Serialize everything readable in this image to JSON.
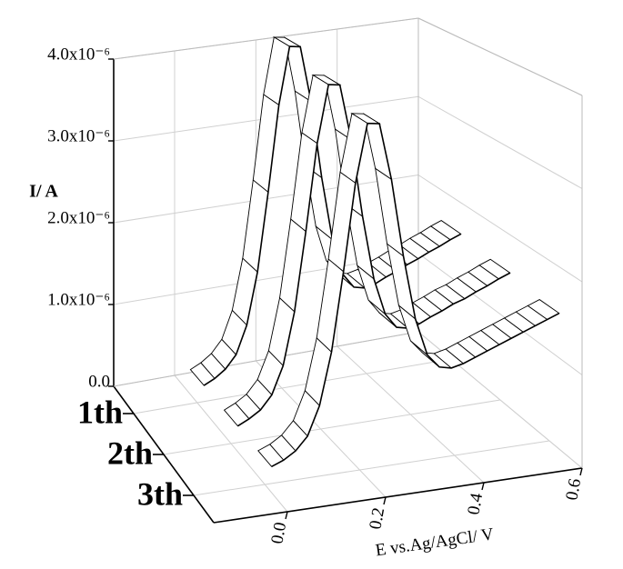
{
  "chart_data": {
    "type": "ribbon",
    "xlabel": "E vs.Ag/AgCl/ V",
    "ylabel": "I/ A",
    "x": [
      0,
      0.025,
      0.05,
      0.075,
      0.1,
      0.125,
      0.15,
      0.175,
      0.2,
      0.225,
      0.25,
      0.275,
      0.3,
      0.325,
      0.35,
      0.375,
      0.4,
      0.425,
      0.45,
      0.475,
      0.5,
      0.525,
      0.55,
      0.575,
      0.6
    ],
    "series": [
      {
        "name": "1th",
        "color": "#000000",
        "values": [
          3e-07,
          3.6e-07,
          4.5e-07,
          6e-07,
          9.3e-07,
          1.54e-06,
          2.47e-06,
          3.49e-06,
          4.17e-06,
          4.15e-06,
          3.48e-06,
          2.55e-06,
          1.79e-06,
          1.35e-06,
          1.18e-06,
          1.15e-06,
          1.18e-06,
          1.24e-06,
          1.29e-06,
          1.35e-06,
          1.4e-06,
          1.46e-06,
          1.51e-06,
          1.57e-06,
          1.62e-06
        ]
      },
      {
        "name": "2th",
        "color": "#000000",
        "values": [
          2.9e-07,
          3.5e-07,
          4.3e-07,
          5.8e-07,
          8.9e-07,
          1.48e-06,
          2.37e-06,
          3.35e-06,
          4e-06,
          3.98e-06,
          3.34e-06,
          2.45e-06,
          1.72e-06,
          1.3e-06,
          1.13e-06,
          1.1e-06,
          1.13e-06,
          1.19e-06,
          1.24e-06,
          1.3e-06,
          1.34e-06,
          1.4e-06,
          1.45e-06,
          1.51e-06,
          1.56e-06
        ]
      },
      {
        "name": "3th",
        "color": "#000000",
        "values": [
          2.8e-07,
          3.3e-07,
          4.1e-07,
          5.5e-07,
          8.6e-07,
          1.42e-06,
          2.27e-06,
          3.21e-06,
          3.84e-06,
          3.82e-06,
          3.2e-06,
          2.35e-06,
          1.65e-06,
          1.24e-06,
          1.09e-06,
          1.06e-06,
          1.09e-06,
          1.14e-06,
          1.19e-06,
          1.24e-06,
          1.29e-06,
          1.34e-06,
          1.39e-06,
          1.44e-06,
          1.49e-06
        ]
      }
    ],
    "xlim": [
      -0.15,
      0.6
    ],
    "xticks": [
      {
        "value": 0,
        "label": "0.0"
      },
      0.2,
      0.4,
      0.6
    ],
    "ylim": [
      0,
      4e-06
    ],
    "yticks": [
      {
        "value": 0,
        "label": "0.0"
      },
      {
        "value": 1e-06,
        "label": "1.0x10⁻⁶"
      },
      {
        "value": 2e-06,
        "label": "2.0x10⁻⁶"
      },
      {
        "value": 3e-06,
        "label": "3.0x10⁻⁶"
      },
      {
        "value": 4e-06,
        "label": "4.0x10⁻⁶"
      }
    ],
    "grid": true
  }
}
